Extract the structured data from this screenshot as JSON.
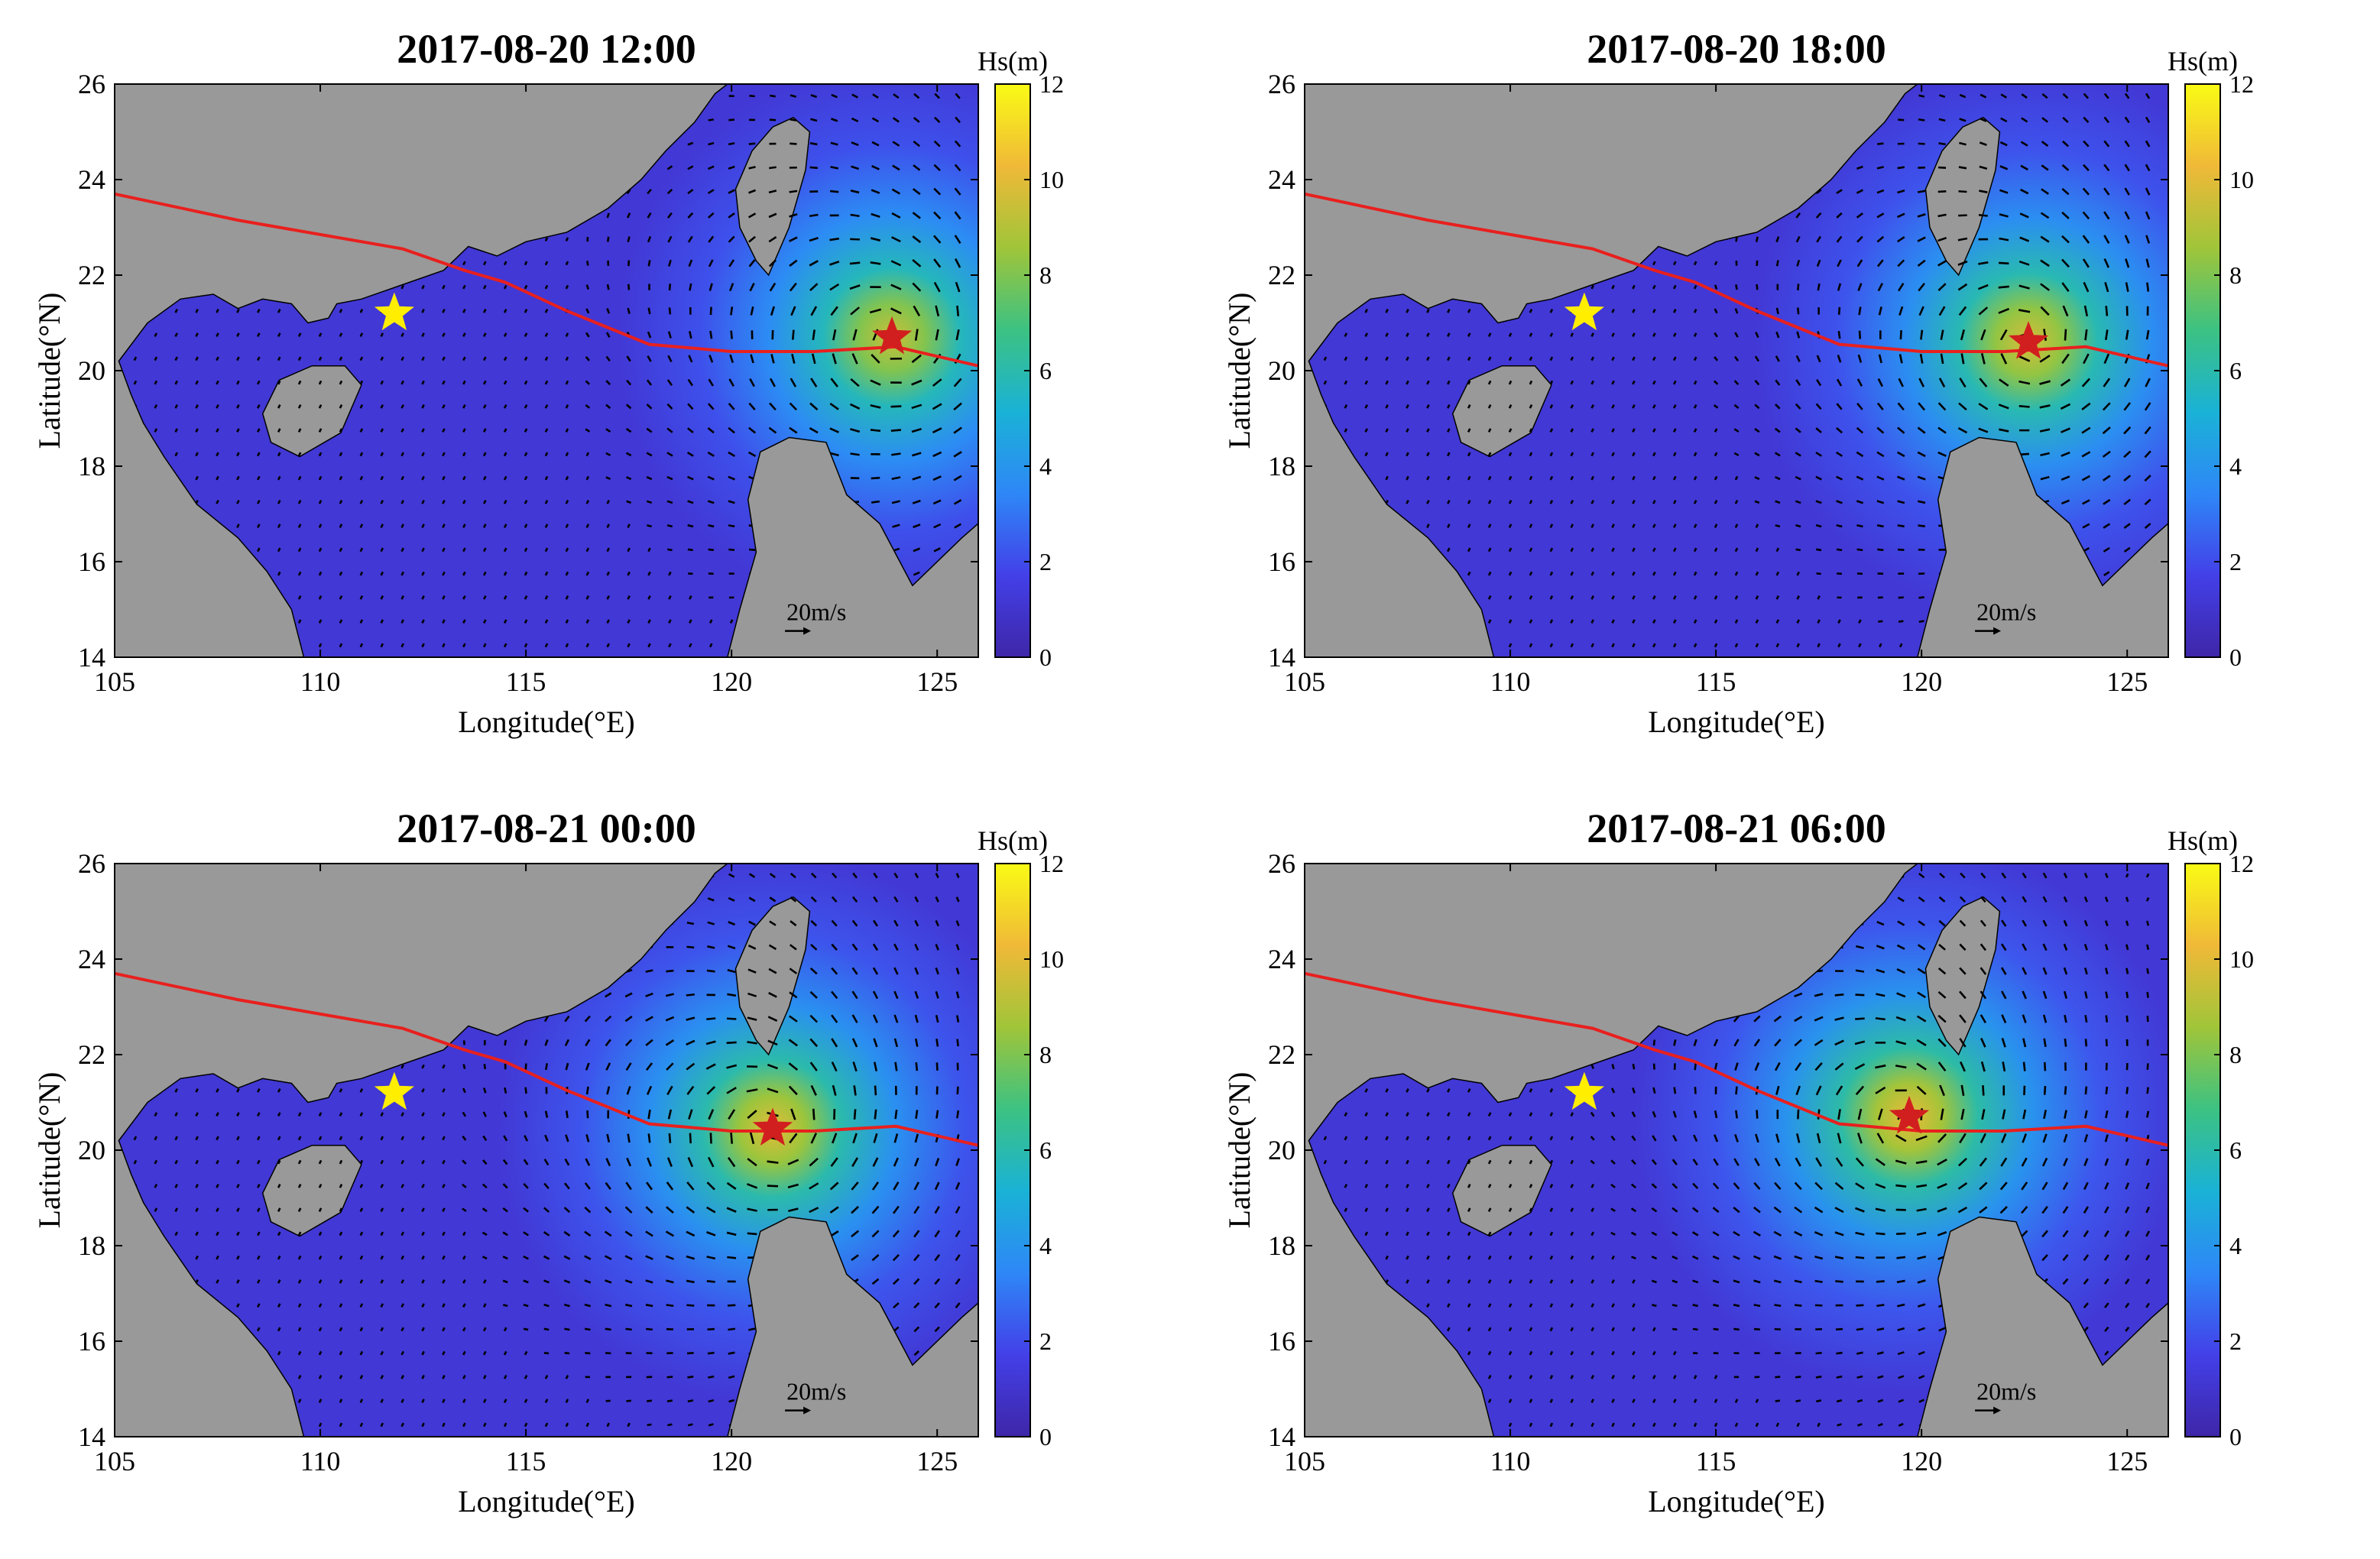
{
  "figure": {
    "panel_titles": [
      "2017-08-20 12:00",
      "2017-08-20 18:00",
      "2017-08-21 00:00",
      "2017-08-21 06:00"
    ]
  },
  "axes": {
    "xlabel": "Longitude(°E)",
    "ylabel": "Latitude(°N)",
    "xticks": [
      105,
      110,
      115,
      120,
      125
    ],
    "yticks": [
      14,
      16,
      18,
      20,
      22,
      24,
      26
    ]
  },
  "colorbar": {
    "label": "Hs(m)",
    "ticks": [
      0,
      2,
      4,
      6,
      8,
      10,
      12
    ],
    "colors": [
      "#3e26a8",
      "#4340e8",
      "#2e87f7",
      "#1ab2d6",
      "#3cc282",
      "#a0c539",
      "#f0b938",
      "#f9fb15"
    ]
  },
  "scale_arrow": {
    "label": "20m/s"
  },
  "chart_data": [
    {
      "type": "heatmap",
      "title": "2017-08-20 12:00",
      "xlabel": "Longitude(°E)",
      "ylabel": "Latitude(°N)",
      "xlim": [
        105,
        126
      ],
      "ylim": [
        14,
        26
      ],
      "colorbar": {
        "label": "Hs(m)",
        "range": [
          0,
          12
        ]
      },
      "typhoon_center": {
        "lon": 123.9,
        "lat": 20.7,
        "peak_hs": 9.5
      },
      "landfall_marker": {
        "lon": 111.8,
        "lat": 21.2
      },
      "track": {
        "lon": [
          105,
          108,
          110,
          112,
          113.5,
          114.5,
          116,
          118,
          120,
          122,
          124,
          126
        ],
        "lat": [
          23.7,
          23.15,
          22.85,
          22.55,
          22.1,
          21.85,
          21.25,
          20.55,
          20.4,
          20.4,
          20.5,
          20.1
        ]
      }
    },
    {
      "type": "heatmap",
      "title": "2017-08-20 18:00",
      "xlabel": "Longitude(°E)",
      "ylabel": "Latitude(°N)",
      "xlim": [
        105,
        126
      ],
      "ylim": [
        14,
        26
      ],
      "colorbar": {
        "label": "Hs(m)",
        "range": [
          0,
          12
        ]
      },
      "typhoon_center": {
        "lon": 122.6,
        "lat": 20.6,
        "peak_hs": 9.8
      },
      "landfall_marker": {
        "lon": 111.8,
        "lat": 21.2
      },
      "track": {
        "lon": [
          105,
          108,
          110,
          112,
          113.5,
          114.5,
          116,
          118,
          120,
          122,
          124,
          126
        ],
        "lat": [
          23.7,
          23.15,
          22.85,
          22.55,
          22.1,
          21.85,
          21.25,
          20.55,
          20.4,
          20.4,
          20.5,
          20.1
        ]
      }
    },
    {
      "type": "heatmap",
      "title": "2017-08-21 00:00",
      "xlabel": "Longitude(°E)",
      "ylabel": "Latitude(°N)",
      "xlim": [
        105,
        126
      ],
      "ylim": [
        14,
        26
      ],
      "colorbar": {
        "label": "Hs(m)",
        "range": [
          0,
          12
        ]
      },
      "typhoon_center": {
        "lon": 121.0,
        "lat": 20.45,
        "peak_hs": 10.0
      },
      "landfall_marker": {
        "lon": 111.8,
        "lat": 21.2
      },
      "track": {
        "lon": [
          105,
          108,
          110,
          112,
          113.5,
          114.5,
          116,
          118,
          120,
          122,
          124,
          126
        ],
        "lat": [
          23.7,
          23.15,
          22.85,
          22.55,
          22.1,
          21.85,
          21.25,
          20.55,
          20.4,
          20.4,
          20.5,
          20.1
        ]
      }
    },
    {
      "type": "heatmap",
      "title": "2017-08-21 06:00",
      "xlabel": "Longitude(°E)",
      "ylabel": "Latitude(°N)",
      "xlim": [
        105,
        126
      ],
      "ylim": [
        14,
        26
      ],
      "colorbar": {
        "label": "Hs(m)",
        "range": [
          0,
          12
        ]
      },
      "typhoon_center": {
        "lon": 119.7,
        "lat": 20.7,
        "peak_hs": 10.2
      },
      "landfall_marker": {
        "lon": 111.8,
        "lat": 21.2
      },
      "track": {
        "lon": [
          105,
          108,
          110,
          112,
          113.5,
          114.5,
          116,
          118,
          120,
          122,
          124,
          126
        ],
        "lat": [
          23.7,
          23.15,
          22.85,
          22.55,
          22.1,
          21.85,
          21.25,
          20.55,
          20.4,
          20.4,
          20.5,
          20.1
        ]
      }
    }
  ]
}
